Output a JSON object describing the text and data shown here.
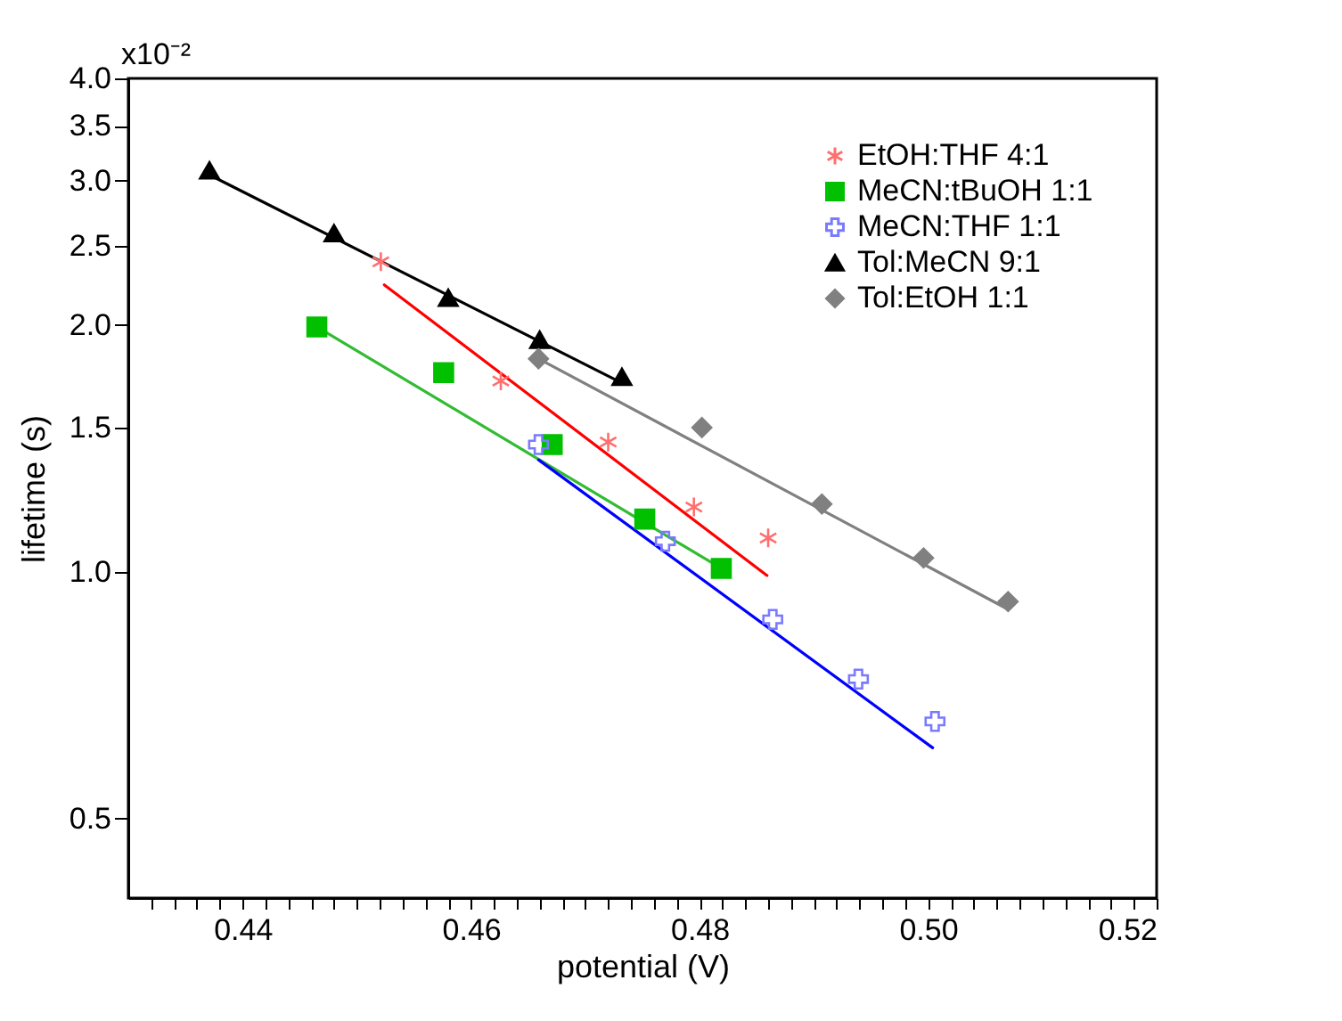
{
  "chart_data": {
    "type": "scatter",
    "xlabel": "potential (V)",
    "ylabel": "lifetime (s)",
    "log": "y",
    "grid": false,
    "legend": "top right",
    "xlim": [
      0.43,
      0.52
    ],
    "xticks": [
      {
        "value": 0.432,
        "label": null
      },
      {
        "value": 0.434,
        "label": null
      },
      {
        "value": 0.436,
        "label": null
      },
      {
        "value": 0.438,
        "label": null
      },
      {
        "value": 0.44,
        "label": "0.44"
      },
      {
        "value": 0.442,
        "label": null
      },
      {
        "value": 0.444,
        "label": null
      },
      {
        "value": 0.446,
        "label": null
      },
      {
        "value": 0.448,
        "label": null
      },
      {
        "value": 0.45,
        "label": null
      },
      {
        "value": 0.452,
        "label": null
      },
      {
        "value": 0.454,
        "label": null
      },
      {
        "value": 0.456,
        "label": null
      },
      {
        "value": 0.458,
        "label": null
      },
      {
        "value": 0.46,
        "label": "0.46"
      },
      {
        "value": 0.462,
        "label": null
      },
      {
        "value": 0.464,
        "label": null
      },
      {
        "value": 0.466,
        "label": null
      },
      {
        "value": 0.468,
        "label": null
      },
      {
        "value": 0.47,
        "label": null
      },
      {
        "value": 0.472,
        "label": null
      },
      {
        "value": 0.474,
        "label": null
      },
      {
        "value": 0.476,
        "label": null
      },
      {
        "value": 0.478,
        "label": null
      },
      {
        "value": 0.48,
        "label": "0.48"
      },
      {
        "value": 0.482,
        "label": null
      },
      {
        "value": 0.484,
        "label": null
      },
      {
        "value": 0.486,
        "label": null
      },
      {
        "value": 0.488,
        "label": null
      },
      {
        "value": 0.49,
        "label": null
      },
      {
        "value": 0.492,
        "label": null
      },
      {
        "value": 0.494,
        "label": null
      },
      {
        "value": 0.496,
        "label": null
      },
      {
        "value": 0.498,
        "label": null
      },
      {
        "value": 0.5,
        "label": "0.50"
      },
      {
        "value": 0.502,
        "label": null
      },
      {
        "value": 0.504,
        "label": null
      },
      {
        "value": 0.506,
        "label": null
      },
      {
        "value": 0.508,
        "label": null
      },
      {
        "value": 0.51,
        "label": null
      },
      {
        "value": 0.512,
        "label": null
      },
      {
        "value": 0.514,
        "label": null
      },
      {
        "value": 0.516,
        "label": null
      },
      {
        "value": 0.518,
        "label": null
      },
      {
        "value": 0.52,
        "label": "0.52"
      }
    ],
    "ylim": [
      0.4,
      4.0
    ],
    "yticks": [
      {
        "value": 0.5,
        "label": "0.5"
      },
      {
        "value": 1,
        "label": "1.0"
      },
      {
        "value": 1.5,
        "label": "1.5"
      },
      {
        "value": 2,
        "label": "2.0"
      },
      {
        "value": 2.5,
        "label": "2.5"
      },
      {
        "value": 3,
        "label": "3.0"
      },
      {
        "value": 3.5,
        "label": "3.5"
      },
      {
        "value": 4,
        "label": "4.0"
      }
    ],
    "annotations": [
      "x10⁻²"
    ],
    "series": [
      {
        "name": "EtOH:THF 4:1",
        "type": "scatter",
        "marker": "cross",
        "color": "#ff6f6f",
        "x": [
          0.4521,
          0.4626,
          0.472,
          0.4795,
          0.486
        ],
        "values": [
          2.39,
          1.71,
          1.44,
          1.2,
          1.1
        ]
      },
      {
        "name": "MeCN:tBuOH 1:1",
        "type": "scatter",
        "marker": "square",
        "color": "#00c000",
        "x": [
          0.4465,
          0.4576,
          0.4671,
          0.4752,
          0.4819
        ],
        "values": [
          1.99,
          1.75,
          1.43,
          1.16,
          1.01
        ]
      },
      {
        "name": "MeCN:THF 1:1",
        "type": "scatter",
        "marker": "cross",
        "color": "#7a7aff",
        "x": [
          0.4659,
          0.477,
          0.4864,
          0.4939,
          0.5006
        ],
        "values": [
          1.43,
          1.09,
          0.875,
          0.74,
          0.657
        ]
      },
      {
        "name": "Tol:MeCN 9:1",
        "type": "scatter",
        "marker": "triangle",
        "color": "#000000",
        "x": [
          0.4371,
          0.448,
          0.458,
          0.466,
          0.4732
        ],
        "values": [
          3.09,
          2.59,
          2.16,
          1.92,
          1.73
        ]
      },
      {
        "name": "Tol:EtOH 1:1",
        "type": "scatter",
        "marker": "diamond",
        "color": "#808080",
        "x": [
          0.4659,
          0.4802,
          0.4907,
          0.4996,
          0.507
        ],
        "values": [
          1.82,
          1.5,
          1.21,
          1.04,
          0.92
        ]
      },
      {
        "type": "line",
        "marker": "none",
        "line_style": "solid",
        "color": "#ff0000",
        "x": [
          0.4524,
          0.4859
        ],
        "values": [
          2.24,
          0.99
        ]
      },
      {
        "type": "line",
        "marker": "none",
        "line_style": "solid",
        "color": "#33bb33",
        "x": [
          0.4465,
          0.4819
        ],
        "values": [
          1.99,
          1.01
        ]
      },
      {
        "type": "line",
        "marker": "none",
        "line_style": "solid",
        "color": "#0000ff",
        "x": [
          0.4659,
          0.5004
        ],
        "values": [
          1.37,
          0.61
        ]
      },
      {
        "type": "line",
        "marker": "none",
        "line_style": "solid",
        "color": "#000000",
        "x": [
          0.4371,
          0.4732
        ],
        "values": [
          3.05,
          1.7
        ]
      },
      {
        "type": "line",
        "marker": "none",
        "line_style": "solid",
        "color": "#808080",
        "x": [
          0.4659,
          0.507
        ],
        "values": [
          1.82,
          0.9
        ]
      }
    ]
  }
}
